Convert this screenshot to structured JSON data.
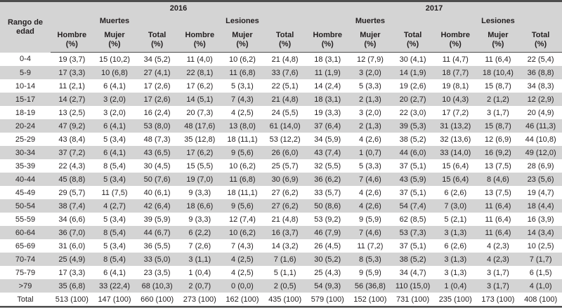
{
  "table": {
    "row_header_label": "Rango de edad",
    "years": [
      "2016",
      "2017"
    ],
    "groups": [
      "Muertes",
      "Lesiones"
    ],
    "sub_headers": [
      "Hombre\n(%)",
      "Mujer\n(%)",
      "Total\n(%)"
    ],
    "rows": [
      {
        "age": "0-4",
        "cells": [
          "19 (3,7)",
          "15 (10,2)",
          "34 (5,2)",
          "11 (4,0)",
          "10 (6,2)",
          "21 (4,8)",
          "18 (3,1)",
          "12 (7,9)",
          "30 (4,1)",
          "11 (4,7)",
          "11 (6,4)",
          "22 (5,4)"
        ]
      },
      {
        "age": "5-9",
        "cells": [
          "17 (3,3)",
          "10 (6,8)",
          "27 (4,1)",
          "22 (8,1)",
          "11 (6,8)",
          "33 (7,6)",
          "11 (1,9)",
          "3 (2,0)",
          "14 (1,9)",
          "18 (7,7)",
          "18 (10,4)",
          "36 (8,8)"
        ]
      },
      {
        "age": "10-14",
        "cells": [
          "11 (2,1)",
          "6 (4,1)",
          "17 (2,6)",
          "17 (6,2)",
          "5 (3,1)",
          "22 (5,1)",
          "14 (2,4)",
          "5 (3,3)",
          "19 (2,6)",
          "19 (8,1)",
          "15 (8,7)",
          "34 (8,3)"
        ]
      },
      {
        "age": "15-17",
        "cells": [
          "14 (2,7)",
          "3 (2,0)",
          "17 (2,6)",
          "14 (5,1)",
          "7 (4,3)",
          "21 (4,8)",
          "18 (3,1)",
          "2 (1,3)",
          "20 (2,7)",
          "10 (4,3)",
          "2 (1,2)",
          "12 (2,9)"
        ]
      },
      {
        "age": "18-19",
        "cells": [
          "13 (2,5)",
          "3 (2,0)",
          "16 (2,4)",
          "20 (7,3)",
          "4 (2,5)",
          "24 (5,5)",
          "19 (3,3)",
          "3 (2,0)",
          "22 (3,0)",
          "17 (7,2)",
          "3 (1,7)",
          "20 (4,9)"
        ]
      },
      {
        "age": "20-24",
        "cells": [
          "47 (9,2)",
          "6 (4,1)",
          "53 (8,0)",
          "48 (17,6)",
          "13 (8,0)",
          "61 (14,0)",
          "37 (6,4)",
          "2 (1,3)",
          "39 (5,3)",
          "31 (13,2)",
          "15 (8,7)",
          "46 (11,3)"
        ]
      },
      {
        "age": "25-29",
        "cells": [
          "43 (8,4)",
          "5 (3,4)",
          "48 (7,3)",
          "35 (12,8)",
          "18 (11,1)",
          "53 (12,2)",
          "34 (5,9)",
          "4 (2,6)",
          "38 (5,2)",
          "32 (13,6)",
          "12 (6,9)",
          "44 (10,8)"
        ]
      },
      {
        "age": "30-34",
        "cells": [
          "37 (7,2)",
          "6 (4,1)",
          "43 (6,5)",
          "17 (6,2)",
          "9 (5,6)",
          "26 (6,0)",
          "43 (7,4)",
          "1 (0,7)",
          "44 (6,0)",
          "33 (14,0)",
          "16 (9,2)",
          "49 (12,0)"
        ]
      },
      {
        "age": "35-39",
        "cells": [
          "22 (4,3)",
          "8 (5,4)",
          "30 (4,5)",
          "15 (5,5)",
          "10 (6,2)",
          "25 (5,7)",
          "32 (5,5)",
          "5 (3,3)",
          "37 (5,1)",
          "15 (6,4)",
          "13 (7,5)",
          "28 (6,9)"
        ]
      },
      {
        "age": "40-44",
        "cells": [
          "45 (8,8)",
          "5 (3,4)",
          "50 (7,6)",
          "19 (7,0)",
          "11 (6,8)",
          "30 (6,9)",
          "36 (6,2)",
          "7 (4,6)",
          "43 (5,9)",
          "15 (6,4)",
          "8 (4,6)",
          "23 (5,6)"
        ]
      },
      {
        "age": "45-49",
        "cells": [
          "29 (5,7)",
          "11 (7,5)",
          "40 (6,1)",
          "9 (3,3)",
          "18 (11,1)",
          "27 (6,2)",
          "33 (5,7)",
          "4 (2,6)",
          "37 (5,1)",
          "6 (2,6)",
          "13 (7,5)",
          "19 (4,7)"
        ]
      },
      {
        "age": "50-54",
        "cells": [
          "38 (7,4)",
          "4 (2,7)",
          "42 (6,4)",
          "18 (6,6)",
          "9 (5,6)",
          "27 (6,2)",
          "50 (8,6)",
          "4 (2,6)",
          "54 (7,4)",
          "7 (3,0)",
          "11 (6,4)",
          "18 (4,4)"
        ]
      },
      {
        "age": "55-59",
        "cells": [
          "34 (6,6)",
          "5 (3,4)",
          "39 (5,9)",
          "9 (3,3)",
          "12 (7,4)",
          "21 (4,8)",
          "53 (9,2)",
          "9 (5,9)",
          "62 (8,5)",
          "5 (2,1)",
          "11 (6,4)",
          "16 (3,9)"
        ]
      },
      {
        "age": "60-64",
        "cells": [
          "36 (7,0)",
          "8 (5,4)",
          "44 (6,7)",
          "6 (2,2)",
          "10 (6,2)",
          "16 (3,7)",
          "46 (7,9)",
          "7 (4,6)",
          "53 (7,3)",
          "3 (1,3)",
          "11 (6,4)",
          "14 (3,4)"
        ]
      },
      {
        "age": "65-69",
        "cells": [
          "31 (6,0)",
          "5 (3,4)",
          "36 (5,5)",
          "7 (2,6)",
          "7 (4,3)",
          "14 (3,2)",
          "26 (4,5)",
          "11 (7,2)",
          "37 (5,1)",
          "6 (2,6)",
          "4 (2,3)",
          "10 (2,5)"
        ]
      },
      {
        "age": "70-74",
        "cells": [
          "25 (4,9)",
          "8 (5,4)",
          "33 (5,0)",
          "3 (1,1)",
          "4 (2,5)",
          "7 (1,6)",
          "30 (5,2)",
          "8 (5,3)",
          "38 (5,2)",
          "3 (1,3)",
          "4 (2,3)",
          "7 (1,7)"
        ]
      },
      {
        "age": "75-79",
        "cells": [
          "17 (3,3)",
          "6 (4,1)",
          "23 (3,5)",
          "1 (0,4)",
          "4 (2,5)",
          "5 (1,1)",
          "25 (4,3)",
          "9 (5,9)",
          "34 (4,7)",
          "3 (1,3)",
          "3 (1,7)",
          "6 (1,5)"
        ]
      },
      {
        "age": ">79",
        "cells": [
          "35 (6,8)",
          "33 (22,4)",
          "68 (10,3)",
          "2 (0,7)",
          "0 (0,0)",
          "2 (0,5)",
          "54 (9,3)",
          "56 (36,8)",
          "110 (15,0)",
          "1 (0,4)",
          "3 (1,7)",
          "4 (1,0)"
        ]
      },
      {
        "age": "Total",
        "cells": [
          "513 (100)",
          "147 (100)",
          "660 (100)",
          "273 (100)",
          "162 (100)",
          "435 (100)",
          "579 (100)",
          "152 (100)",
          "731 (100)",
          "235 (100)",
          "173 (100)",
          "408 (100)"
        ]
      }
    ]
  },
  "colors": {
    "stripe_and_header_bg": "#d4d4d4",
    "rule_dark": "#4d4d4d",
    "rule_light": "#a6a6a6",
    "text": "#231f20"
  }
}
